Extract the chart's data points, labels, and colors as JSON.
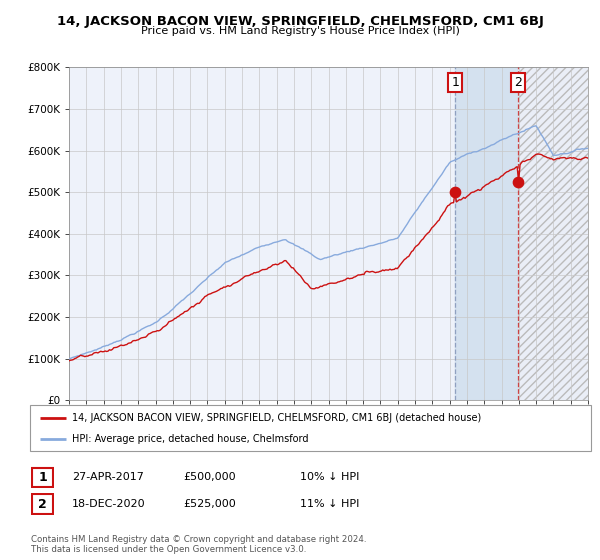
{
  "title": "14, JACKSON BACON VIEW, SPRINGFIELD, CHELMSFORD, CM1 6BJ",
  "subtitle": "Price paid vs. HM Land Registry's House Price Index (HPI)",
  "background_color": "#ffffff",
  "plot_bg_color": "#eef2fa",
  "grid_color": "#c8c8c8",
  "red_line_color": "#cc1111",
  "blue_line_color": "#88aadd",
  "purchase1_date": 2017.32,
  "purchase1_price": 500000,
  "purchase2_date": 2020.96,
  "purchase2_price": 525000,
  "legend_red": "14, JACKSON BACON VIEW, SPRINGFIELD, CHELMSFORD, CM1 6BJ (detached house)",
  "legend_blue": "HPI: Average price, detached house, Chelmsford",
  "ann1_date": "27-APR-2017",
  "ann1_price": "£500,000",
  "ann1_hpi": "10% ↓ HPI",
  "ann2_date": "18-DEC-2020",
  "ann2_price": "£525,000",
  "ann2_hpi": "11% ↓ HPI",
  "footer": "Contains HM Land Registry data © Crown copyright and database right 2024.\nThis data is licensed under the Open Government Licence v3.0.",
  "xmin": 1995,
  "xmax": 2025,
  "ymin": 0,
  "ymax": 800000,
  "yticks": [
    0,
    100000,
    200000,
    300000,
    400000,
    500000,
    600000,
    700000,
    800000
  ],
  "ytick_labels": [
    "£0",
    "£100K",
    "£200K",
    "£300K",
    "£400K",
    "£500K",
    "£600K",
    "£700K",
    "£800K"
  ]
}
